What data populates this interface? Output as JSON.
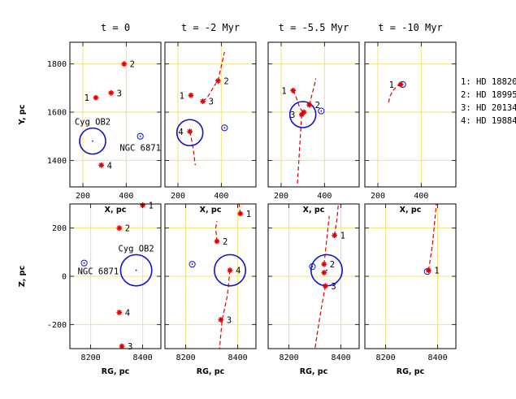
{
  "chart_data": {
    "type": "scatter",
    "columns": [
      {
        "title": "t = 0"
      },
      {
        "title": "t = -2 Myr"
      },
      {
        "title": "t = -5.5 Myr"
      },
      {
        "title": "t = -10 Myr"
      }
    ],
    "rows": [
      {
        "xlabel": "X, pc",
        "ylabel": "Y, pc",
        "xlim": [
          140,
          560
        ],
        "ylim": [
          1290,
          1890
        ],
        "xticks": [
          200,
          400
        ],
        "yticks": [
          1400,
          1600,
          1800
        ],
        "grid_x": [
          200,
          400
        ],
        "grid_y": [
          1400,
          1600,
          1800
        ],
        "panels": [
          {
            "stars": [
              {
                "id": "1",
                "x": 260,
                "y": 1660,
                "label_side": "left"
              },
              {
                "id": "2",
                "x": 390,
                "y": 1800,
                "label_side": "right"
              },
              {
                "id": "3",
                "x": 330,
                "y": 1680,
                "label_side": "right"
              },
              {
                "id": "4",
                "x": 285,
                "y": 1380,
                "label_side": "right"
              }
            ],
            "tracks": [],
            "cluster": {
              "name": "Cyg OB2",
              "x": 245,
              "y": 1480,
              "r": 100
            },
            "ngc": {
              "name": "NGC 6871",
              "x": 465,
              "y": 1500,
              "r": 18
            }
          },
          {
            "stars": [
              {
                "id": "1",
                "x": 260,
                "y": 1670,
                "label_side": "left"
              },
              {
                "id": "2",
                "x": 385,
                "y": 1730,
                "label_side": "right"
              },
              {
                "id": "3",
                "x": 315,
                "y": 1645,
                "label_side": "right"
              },
              {
                "id": "4",
                "x": 255,
                "y": 1520,
                "label_side": "left"
              }
            ],
            "tracks": [
              {
                "points": [
                  [
                    255,
                    1520
                  ],
                  [
                    270,
                    1450
                  ],
                  [
                    280,
                    1380
                  ]
                ]
              },
              {
                "points": [
                  [
                    385,
                    1730
                  ],
                  [
                    400,
                    1790
                  ],
                  [
                    415,
                    1850
                  ]
                ]
              },
              {
                "points": [
                  [
                    315,
                    1645
                  ],
                  [
                    335,
                    1660
                  ],
                  [
                    355,
                    1690
                  ],
                  [
                    375,
                    1720
                  ]
                ]
              }
            ],
            "cluster": {
              "x": 255,
              "y": 1515,
              "r": 100
            },
            "ngc": {
              "x": 415,
              "y": 1535,
              "r": 18
            }
          },
          {
            "stars": [
              {
                "id": "1",
                "x": 255,
                "y": 1690,
                "label_side": "left"
              },
              {
                "id": "2",
                "x": 330,
                "y": 1630,
                "label_side": "right"
              },
              {
                "id": "3",
                "x": 295,
                "y": 1590,
                "label_side": "left"
              },
              {
                "id": "4",
                "x": 305,
                "y": 1600,
                "label_side": "none"
              }
            ],
            "tracks": [
              {
                "points": [
                  [
                    255,
                    1690
                  ],
                  [
                    270,
                    1660
                  ],
                  [
                    285,
                    1620
                  ],
                  [
                    300,
                    1600
                  ]
                ]
              },
              {
                "points": [
                  [
                    330,
                    1630
                  ],
                  [
                    350,
                    1700
                  ],
                  [
                    360,
                    1740
                  ]
                ]
              },
              {
                "points": [
                  [
                    295,
                    1590
                  ],
                  [
                    285,
                    1450
                  ],
                  [
                    275,
                    1300
                  ]
                ]
              }
            ],
            "cluster": {
              "x": 300,
              "y": 1590,
              "r": 100
            },
            "ngc": {
              "x": 385,
              "y": 1605,
              "r": 18
            }
          },
          {
            "stars": [
              {
                "id": "1",
                "x": 305,
                "y": 1715,
                "label_side": "left"
              }
            ],
            "tracks": [
              {
                "points": [
                  [
                    250,
                    1640
                  ],
                  [
                    255,
                    1665
                  ],
                  [
                    270,
                    1690
                  ],
                  [
                    290,
                    1710
                  ],
                  [
                    305,
                    1715
                  ]
                ]
              }
            ],
            "cluster": null,
            "ngc": {
              "x": 315,
              "y": 1715,
              "r": 18
            }
          }
        ]
      },
      {
        "xlabel": "RG, pc",
        "ylabel": "Z, pc",
        "xlim": [
          8120,
          8470
        ],
        "ylim": [
          -300,
          300
        ],
        "xticks": [
          8200,
          8400
        ],
        "yticks": [
          -200,
          0,
          200
        ],
        "grid_x": [
          8200,
          8400
        ],
        "grid_y": [
          -200,
          0,
          200
        ],
        "panels": [
          {
            "stars": [
              {
                "id": "1",
                "x": 8400,
                "y": 295,
                "label_side": "right"
              },
              {
                "id": "2",
                "x": 8310,
                "y": 200,
                "label_side": "right"
              },
              {
                "id": "4",
                "x": 8310,
                "y": -150,
                "label_side": "right"
              },
              {
                "id": "3",
                "x": 8320,
                "y": -290,
                "label_side": "right"
              }
            ],
            "tracks": [],
            "cluster": {
              "name": "Cyg OB2",
              "x": 8375,
              "y": 25,
              "r": 100
            },
            "ngc": {
              "name": "NGC 6871",
              "x": 8175,
              "y": 55,
              "r": 18
            }
          },
          {
            "stars": [
              {
                "id": "1",
                "x": 8410,
                "y": 260,
                "label_side": "right"
              },
              {
                "id": "2",
                "x": 8320,
                "y": 145,
                "label_side": "right"
              },
              {
                "id": "4",
                "x": 8370,
                "y": 25,
                "label_side": "right"
              },
              {
                "id": "3",
                "x": 8335,
                "y": -180,
                "label_side": "right"
              }
            ],
            "tracks": [
              {
                "points": [
                  [
                    8410,
                    260
                  ],
                  [
                    8405,
                    300
                  ]
                ]
              },
              {
                "points": [
                  [
                    8320,
                    145
                  ],
                  [
                    8315,
                    200
                  ],
                  [
                    8320,
                    230
                  ]
                ]
              },
              {
                "points": [
                  [
                    8370,
                    25
                  ],
                  [
                    8360,
                    -80
                  ],
                  [
                    8340,
                    -180
                  ],
                  [
                    8330,
                    -300
                  ]
                ]
              }
            ],
            "cluster": {
              "x": 8370,
              "y": 25,
              "r": 100
            },
            "ngc": {
              "x": 8225,
              "y": 50,
              "r": 18
            }
          },
          {
            "stars": [
              {
                "id": "1",
                "x": 8375,
                "y": 170,
                "label_side": "right"
              },
              {
                "id": "2",
                "x": 8335,
                "y": 50,
                "label_side": "right"
              },
              {
                "id": "3",
                "x": 8340,
                "y": -40,
                "label_side": "right"
              },
              {
                "id": "4",
                "x": 8335,
                "y": 15,
                "label_side": "none"
              }
            ],
            "tracks": [
              {
                "points": [
                  [
                    8375,
                    170
                  ],
                  [
                    8385,
                    240
                  ],
                  [
                    8390,
                    300
                  ]
                ]
              },
              {
                "points": [
                  [
                    8335,
                    50
                  ],
                  [
                    8345,
                    150
                  ],
                  [
                    8355,
                    250
                  ]
                ]
              },
              {
                "points": [
                  [
                    8340,
                    -40
                  ],
                  [
                    8320,
                    -160
                  ],
                  [
                    8300,
                    -300
                  ]
                ]
              }
            ],
            "cluster": {
              "x": 8345,
              "y": 25,
              "r": 100
            },
            "ngc": {
              "x": 8290,
              "y": 40,
              "r": 18
            }
          },
          {
            "stars": [
              {
                "id": "1",
                "x": 8365,
                "y": 25,
                "label_side": "right"
              }
            ],
            "tracks": [
              {
                "points": [
                  [
                    8365,
                    25
                  ],
                  [
                    8380,
                    130
                  ],
                  [
                    8395,
                    300
                  ]
                ]
              }
            ],
            "cluster": null,
            "ngc": {
              "x": 8360,
              "y": 20,
              "r": 18
            }
          }
        ]
      }
    ],
    "legend": [
      "1: HD 18820",
      "2: HD 18995",
      "3: HD 20134",
      "4: HD 19884"
    ],
    "colors": {
      "star": "#e00000",
      "track": "#e00000",
      "cluster": "#1010d0",
      "grid": "#f5e27a"
    }
  }
}
